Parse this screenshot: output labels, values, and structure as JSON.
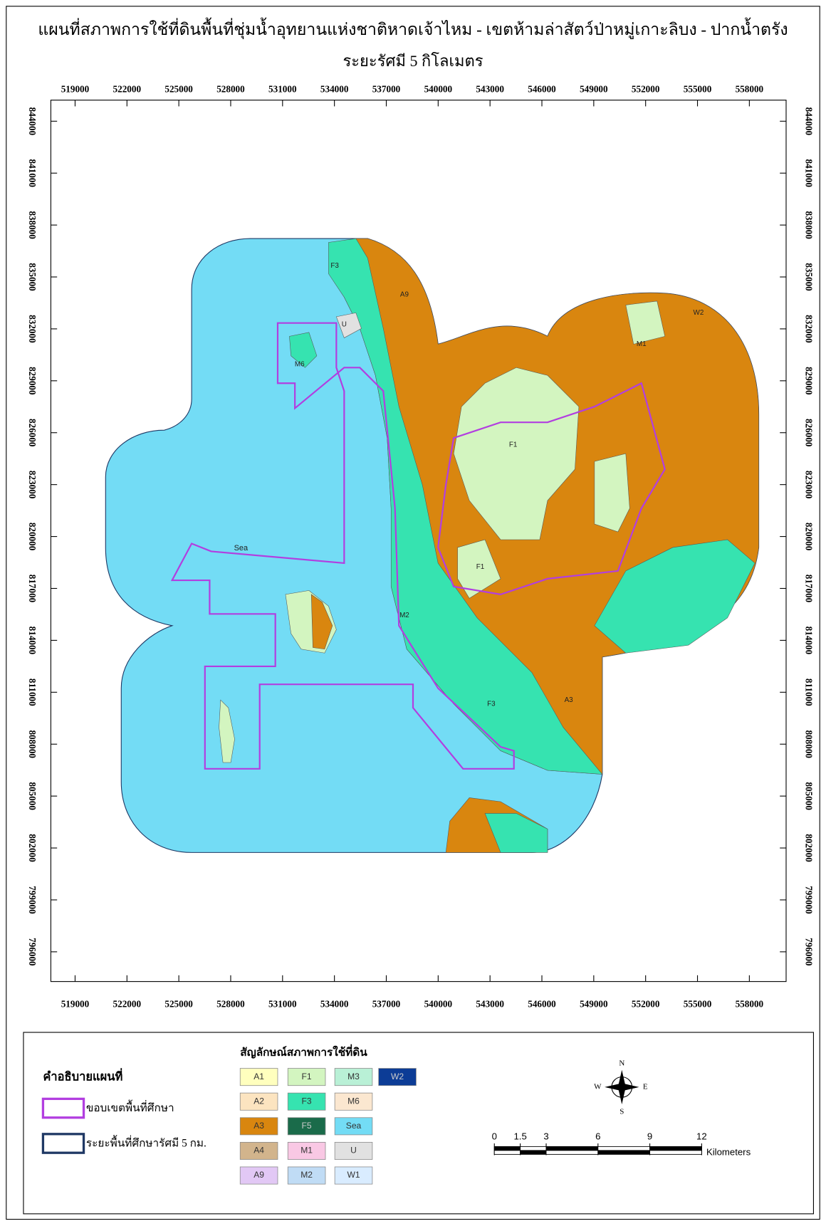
{
  "header": {
    "title": "แผนที่สภาพการใช้ที่ดินพื้นที่ชุ่มน้ำอุทยานแห่งชาติหาดเจ้าไหม - เขตห้ามล่าสัตว์ป่าหมู่เกาะลิบง - ปากน้ำตรัง",
    "subtitle": "ระยะรัศมี 5 กิโลเมตร"
  },
  "map": {
    "xticks": [
      519000,
      522000,
      525000,
      528000,
      531000,
      534000,
      537000,
      540000,
      543000,
      546000,
      549000,
      552000,
      555000,
      558000
    ],
    "yticks": [
      844000,
      841000,
      838000,
      835000,
      832000,
      829000,
      826000,
      823000,
      820000,
      817000,
      814000,
      811000,
      808000,
      805000,
      802000,
      799000,
      796000
    ],
    "labels": [
      "Sea",
      "F1",
      "F1",
      "F3",
      "M1",
      "M6",
      "A3",
      "A9",
      "W2",
      "U",
      "M2",
      "F3"
    ]
  },
  "legend": {
    "title": "คำอธิบายแผนที่",
    "items": [
      {
        "label": "ขอบเขตพื้นที่ศึกษา",
        "color": "#b23ee0"
      },
      {
        "label": "ระยะพื้นที่ศึกษารัศมี 5 กม.",
        "color": "#1f3864"
      }
    ],
    "landuse_title": "สัญลักษณ์สภาพการใช้ที่ดิน",
    "landuse": [
      {
        "code": "A1",
        "color": "#ffffbe"
      },
      {
        "code": "A2",
        "color": "#fce4c0"
      },
      {
        "code": "A3",
        "color": "#d9860f"
      },
      {
        "code": "A4",
        "color": "#d2b48c"
      },
      {
        "code": "A9",
        "color": "#e2c8f5"
      },
      {
        "code": "F1",
        "color": "#d3f5c0"
      },
      {
        "code": "F3",
        "color": "#36e3b0"
      },
      {
        "code": "F5",
        "color": "#1a6b4a"
      },
      {
        "code": "M1",
        "color": "#f9c8e4"
      },
      {
        "code": "M2",
        "color": "#c0dcf5"
      },
      {
        "code": "M3",
        "color": "#b9f0d6"
      },
      {
        "code": "M6",
        "color": "#fbe7d0"
      },
      {
        "code": "Sea",
        "color": "#73dcf5"
      },
      {
        "code": "U",
        "color": "#e1e1e1"
      },
      {
        "code": "W1",
        "color": "#d9ecff"
      },
      {
        "code": "W2",
        "color": "#0c3c96"
      }
    ]
  },
  "scale": {
    "ticks": [
      0,
      1.5,
      3,
      6,
      9,
      12
    ],
    "unit": "Kilometers"
  },
  "compass": {
    "n": "N",
    "s": "S",
    "e": "E",
    "w": "W"
  }
}
